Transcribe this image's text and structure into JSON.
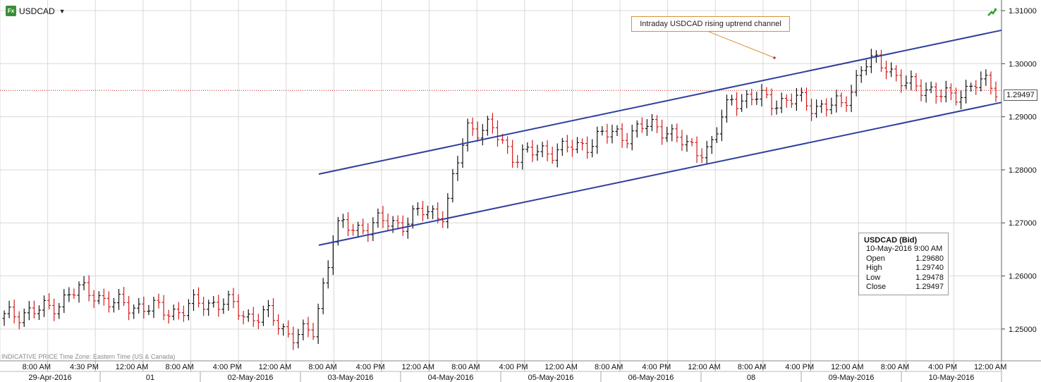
{
  "instrument": {
    "symbol": "USDCAD",
    "icon": "fx-icon",
    "icon_label": "Fx"
  },
  "indicative_text": "INDICATIVE PRICE   Time Zone: Eastern Time (US & Canada)",
  "annotation": {
    "text": "Intraday USDCAD rising uptrend channel"
  },
  "last_price": "1.29497",
  "tooltip": {
    "title": "USDCAD (Bid)",
    "datetime": "10-May-2016 9:00 AM",
    "rows": [
      {
        "label": "Open",
        "value": "1.29680"
      },
      {
        "label": "High",
        "value": "1.29740"
      },
      {
        "label": "Low",
        "value": "1.29478"
      },
      {
        "label": "Close",
        "value": "1.29497"
      }
    ]
  },
  "colors": {
    "channel": "#2e3f9e",
    "bull": "#111111",
    "bear": "#d11a1a",
    "annotation_border": "#d6913a",
    "last_price_line": "#c41c1c",
    "grid": "#d9d9d9"
  },
  "chart_data": {
    "type": "ohlc",
    "title": "USDCAD",
    "y_ticks": [
      "1.31000",
      "1.30000",
      "1.29000",
      "1.28000",
      "1.27000",
      "1.26000",
      "1.25000"
    ],
    "ylim": [
      1.244,
      1.312
    ],
    "time_labels": [
      "8:00 AM",
      "4:30 PM",
      "12:00 AM",
      "8:00 AM",
      "4:00 PM",
      "12:00 AM",
      "8:00 AM",
      "4:00 PM",
      "12:00 AM",
      "8:00 AM",
      "4:00 PM",
      "12:00 AM",
      "8:00 AM",
      "4:00 PM",
      "12:00 AM",
      "8:00 AM",
      "4:00 PM",
      "12:00 AM",
      "8:00 AM",
      "4:00 PM",
      "12:00 AM"
    ],
    "date_labels": [
      "29-Apr-2016",
      "01",
      "02-May-2016",
      "03-May-2016",
      "04-May-2016",
      "05-May-2016",
      "06-May-2016",
      "08",
      "09-May-2016",
      "10-May-2016"
    ],
    "series": [
      {
        "period": "29-Apr-2016",
        "open": 1.252,
        "close": 1.2535
      },
      {
        "period": "29-Apr-2016 8:00 AM",
        "open": 1.2535,
        "close": 1.257
      },
      {
        "period": "29-Apr-2016 4:30 PM",
        "open": 1.257,
        "close": 1.2545
      },
      {
        "period": "02-May-2016 12:00 AM",
        "open": 1.2545,
        "close": 1.2535
      },
      {
        "period": "02-May-2016 8:00 AM",
        "open": 1.2535,
        "close": 1.255
      },
      {
        "period": "02-May-2016 4:00 PM",
        "open": 1.255,
        "close": 1.2525
      },
      {
        "period": "03-May-2016 12:00 AM",
        "open": 1.2525,
        "close": 1.249
      },
      {
        "period": "03-May-2016 8:00 AM",
        "open": 1.249,
        "close": 1.269
      },
      {
        "period": "03-May-2016 4:00 PM",
        "open": 1.269,
        "close": 1.27
      },
      {
        "period": "04-May-2016 12:00 AM",
        "open": 1.27,
        "close": 1.272
      },
      {
        "period": "04-May-2016 8:00 AM",
        "open": 1.272,
        "close": 1.288
      },
      {
        "period": "04-May-2016 4:00 PM",
        "open": 1.288,
        "close": 1.283
      },
      {
        "period": "05-May-2016 12:00 AM",
        "open": 1.283,
        "close": 1.284
      },
      {
        "period": "05-May-2016 8:00 AM",
        "open": 1.284,
        "close": 1.2865
      },
      {
        "period": "05-May-2016 4:00 PM",
        "open": 1.2865,
        "close": 1.288
      },
      {
        "period": "06-May-2016 12:00 AM",
        "open": 1.288,
        "close": 1.284
      },
      {
        "period": "06-May-2016 8:00 AM",
        "open": 1.284,
        "close": 1.2935
      },
      {
        "period": "06-May-2016 4:00 PM",
        "open": 1.2935,
        "close": 1.293
      },
      {
        "period": "09-May-2016 12:00 AM",
        "open": 1.293,
        "close": 1.292
      },
      {
        "period": "09-May-2016 8:00 AM",
        "open": 1.292,
        "close": 1.3
      },
      {
        "period": "09-May-2016 4:00 PM",
        "open": 1.3,
        "close": 1.2955
      },
      {
        "period": "10-May-2016 12:00 AM",
        "open": 1.2955,
        "close": 1.293
      },
      {
        "period": "10-May-2016 9:00 AM",
        "open": 1.2968,
        "high": 1.2974,
        "low": 1.29478,
        "close": 1.29497
      }
    ],
    "channel": {
      "upper": [
        {
          "x": "03-May-2016 8:00 AM",
          "y": 1.2792
        },
        {
          "x": "10-May-2016",
          "y": 1.3063
        }
      ],
      "lower": [
        {
          "x": "03-May-2016 8:00 AM",
          "y": 1.2658
        },
        {
          "x": "10-May-2016",
          "y": 1.2927
        }
      ]
    },
    "last_price_line": 1.29497,
    "grid": true
  }
}
